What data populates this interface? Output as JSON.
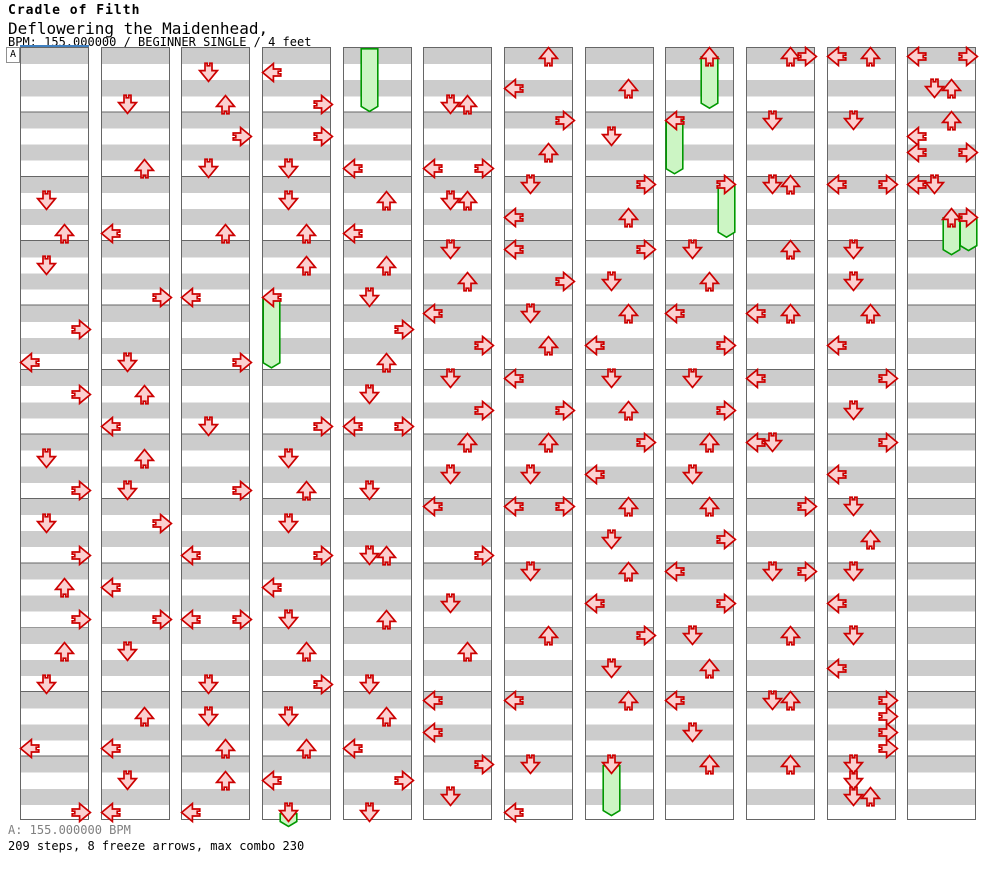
{
  "header": {
    "artist": "Cradle of Filth",
    "title": "Deflowering the Maidenhead,",
    "info": "BPM: 155.000000 / BEGINNER SINGLE / 4 feet",
    "section_label": "A"
  },
  "footer": {
    "bpm_line": "A: 155.000000 BPM",
    "stats_line": "209 steps, 8 freeze arrows, max combo 230"
  },
  "chart": {
    "columns": 12,
    "beats_per_column": 48,
    "beats_per_measure": 4,
    "lanes": [
      "left",
      "down",
      "up",
      "right"
    ],
    "colors": {
      "stripe_gray": "#cccccc",
      "stripe_white": "#ffffff",
      "grid_border": "#666666",
      "arrow_border": "#cc0000",
      "arrow_fill": "#fbd0d0",
      "freeze_border": "#009900",
      "freeze_fill": "#ccf5c4",
      "marker_blue": "#4080c0",
      "footer_gray": "#808080"
    },
    "notes": [
      [
        [
          1,
          9
        ],
        [
          2,
          11
        ],
        [
          1,
          13
        ],
        [
          3,
          17
        ],
        [
          0,
          19
        ],
        [
          3,
          21
        ],
        [
          1,
          25
        ],
        [
          3,
          27
        ],
        [
          1,
          29
        ],
        [
          3,
          31
        ],
        [
          2,
          33
        ],
        [
          3,
          35
        ],
        [
          2,
          37
        ],
        [
          1,
          39
        ],
        [
          0,
          43
        ],
        [
          3,
          47
        ]
      ],
      [
        [
          1,
          3
        ],
        [
          2,
          7
        ],
        [
          0,
          11
        ],
        [
          3,
          15
        ],
        [
          1,
          19
        ],
        [
          2,
          21
        ],
        [
          0,
          23
        ],
        [
          2,
          25
        ],
        [
          1,
          27
        ],
        [
          3,
          29
        ],
        [
          0,
          33
        ],
        [
          3,
          35
        ],
        [
          1,
          37
        ],
        [
          2,
          41
        ],
        [
          0,
          43
        ],
        [
          1,
          45
        ],
        [
          0,
          47
        ]
      ],
      [
        [
          1,
          1
        ],
        [
          2,
          3
        ],
        [
          3,
          5
        ],
        [
          1,
          7
        ],
        [
          2,
          11
        ],
        [
          0,
          15
        ],
        [
          3,
          19
        ],
        [
          1,
          23
        ],
        [
          3,
          27
        ],
        [
          0,
          31
        ],
        [
          0,
          35
        ],
        [
          3,
          35
        ],
        [
          1,
          39
        ],
        [
          1,
          41
        ],
        [
          2,
          43
        ],
        [
          2,
          45
        ],
        [
          0,
          47
        ]
      ],
      [
        [
          0,
          1
        ],
        [
          3,
          3
        ],
        [
          3,
          5
        ],
        [
          1,
          7
        ],
        [
          1,
          9
        ],
        [
          2,
          11
        ],
        [
          2,
          13
        ],
        [
          0,
          15
        ],
        [
          3,
          23
        ],
        [
          1,
          25
        ],
        [
          2,
          27
        ],
        [
          1,
          29
        ],
        [
          3,
          31
        ],
        [
          0,
          33
        ],
        [
          1,
          35
        ],
        [
          2,
          37
        ],
        [
          3,
          39
        ],
        [
          1,
          41
        ],
        [
          2,
          43
        ],
        [
          0,
          45
        ],
        [
          1,
          47
        ]
      ],
      [
        [
          0,
          7
        ],
        [
          2,
          9
        ],
        [
          0,
          11
        ],
        [
          2,
          13
        ],
        [
          1,
          15
        ],
        [
          3,
          17
        ],
        [
          2,
          19
        ],
        [
          1,
          21
        ],
        [
          0,
          23
        ],
        [
          3,
          23
        ],
        [
          1,
          27
        ],
        [
          1,
          31
        ],
        [
          2,
          31
        ],
        [
          2,
          35
        ],
        [
          1,
          39
        ],
        [
          2,
          41
        ],
        [
          0,
          43
        ],
        [
          3,
          45
        ],
        [
          1,
          47
        ]
      ],
      [
        [
          1,
          3
        ],
        [
          2,
          3
        ],
        [
          0,
          7
        ],
        [
          3,
          7
        ],
        [
          1,
          9
        ],
        [
          2,
          9
        ],
        [
          1,
          12
        ],
        [
          2,
          14
        ],
        [
          0,
          16
        ],
        [
          3,
          18
        ],
        [
          1,
          20
        ],
        [
          3,
          22
        ],
        [
          2,
          24
        ],
        [
          1,
          26
        ],
        [
          0,
          28
        ],
        [
          3,
          31
        ],
        [
          1,
          34
        ],
        [
          2,
          37
        ],
        [
          0,
          40
        ],
        [
          0,
          42
        ],
        [
          3,
          44
        ],
        [
          1,
          46
        ]
      ],
      [
        [
          2,
          0
        ],
        [
          0,
          2
        ],
        [
          3,
          4
        ],
        [
          2,
          6
        ],
        [
          1,
          8
        ],
        [
          0,
          10
        ],
        [
          0,
          12
        ],
        [
          3,
          14
        ],
        [
          1,
          16
        ],
        [
          2,
          18
        ],
        [
          0,
          20
        ],
        [
          3,
          22
        ],
        [
          2,
          24
        ],
        [
          1,
          26
        ],
        [
          0,
          28
        ],
        [
          3,
          28
        ],
        [
          1,
          32
        ],
        [
          2,
          36
        ],
        [
          0,
          40
        ],
        [
          1,
          44
        ],
        [
          0,
          47
        ]
      ],
      [
        [
          2,
          2
        ],
        [
          1,
          5
        ],
        [
          3,
          8
        ],
        [
          2,
          10
        ],
        [
          3,
          12
        ],
        [
          1,
          14
        ],
        [
          2,
          16
        ],
        [
          0,
          18
        ],
        [
          1,
          20
        ],
        [
          2,
          22
        ],
        [
          3,
          24
        ],
        [
          0,
          26
        ],
        [
          2,
          28
        ],
        [
          1,
          30
        ],
        [
          2,
          32
        ],
        [
          0,
          34
        ],
        [
          3,
          36
        ],
        [
          1,
          38
        ],
        [
          2,
          40
        ],
        [
          1,
          44
        ]
      ],
      [
        [
          2,
          0
        ],
        [
          0,
          4
        ],
        [
          3,
          8
        ],
        [
          1,
          12
        ],
        [
          2,
          14
        ],
        [
          0,
          16
        ],
        [
          3,
          18
        ],
        [
          1,
          20
        ],
        [
          3,
          22
        ],
        [
          2,
          24
        ],
        [
          1,
          26
        ],
        [
          2,
          28
        ],
        [
          3,
          30
        ],
        [
          0,
          32
        ],
        [
          3,
          34
        ],
        [
          1,
          36
        ],
        [
          2,
          38
        ],
        [
          0,
          40
        ],
        [
          1,
          42
        ],
        [
          2,
          44
        ]
      ],
      [
        [
          2,
          0
        ],
        [
          3,
          0
        ],
        [
          1,
          4
        ],
        [
          1,
          8
        ],
        [
          2,
          8
        ],
        [
          2,
          12
        ],
        [
          0,
          16
        ],
        [
          2,
          16
        ],
        [
          0,
          20
        ],
        [
          0,
          24
        ],
        [
          1,
          24
        ],
        [
          3,
          28
        ],
        [
          1,
          32
        ],
        [
          3,
          32
        ],
        [
          2,
          36
        ],
        [
          1,
          40
        ],
        [
          2,
          40
        ],
        [
          2,
          44
        ]
      ],
      [
        [
          0,
          0
        ],
        [
          2,
          0
        ],
        [
          1,
          4
        ],
        [
          0,
          8
        ],
        [
          3,
          8
        ],
        [
          1,
          12
        ],
        [
          1,
          14
        ],
        [
          2,
          16
        ],
        [
          0,
          18
        ],
        [
          3,
          20
        ],
        [
          1,
          22
        ],
        [
          3,
          24
        ],
        [
          0,
          26
        ],
        [
          1,
          28
        ],
        [
          2,
          30
        ],
        [
          1,
          32
        ],
        [
          0,
          34
        ],
        [
          1,
          36
        ],
        [
          0,
          38
        ],
        [
          3,
          40
        ],
        [
          3,
          41
        ],
        [
          3,
          42
        ],
        [
          3,
          43
        ],
        [
          1,
          44
        ],
        [
          1,
          45
        ],
        [
          1,
          46
        ],
        [
          2,
          46
        ]
      ],
      [
        [
          0,
          0
        ],
        [
          3,
          0
        ],
        [
          1,
          2
        ],
        [
          2,
          2
        ],
        [
          2,
          4
        ],
        [
          0,
          5
        ],
        [
          0,
          6
        ],
        [
          3,
          6
        ],
        [
          0,
          8
        ],
        [
          1,
          8
        ],
        [
          2,
          10
        ],
        [
          3,
          10
        ]
      ]
    ],
    "freezes": [
      {
        "col": 3,
        "lane": 0,
        "start": 15,
        "end": 19.9
      },
      {
        "col": 3,
        "lane": 1,
        "start": 47,
        "end": 48.4
      },
      {
        "col": 4,
        "lane": 1,
        "start": 0,
        "end": 4,
        "headless": true
      },
      {
        "col": 7,
        "lane": 1,
        "start": 44,
        "end": 47.7
      },
      {
        "col": 8,
        "lane": 2,
        "start": 0,
        "end": 3.8
      },
      {
        "col": 8,
        "lane": 0,
        "start": 4,
        "end": 7.9
      },
      {
        "col": 8,
        "lane": 3,
        "start": 8,
        "end": 11.8
      },
      {
        "col": 11,
        "lane": 2,
        "start": 10,
        "end": 12.9
      },
      {
        "col": 11,
        "lane": 3,
        "start": 10,
        "end": 12.65
      }
    ]
  }
}
